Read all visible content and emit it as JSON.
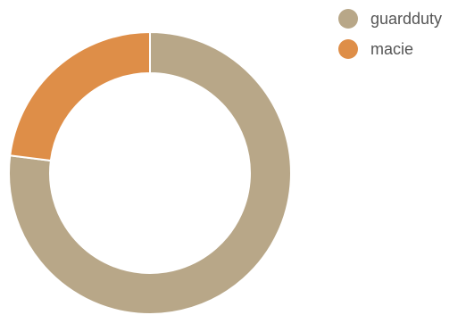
{
  "chart_data": {
    "type": "pie",
    "variant": "donut",
    "categories": [
      "guardduty",
      "macie"
    ],
    "values": [
      77,
      23
    ],
    "colors": [
      "#b8a788",
      "#de8e48"
    ],
    "title": "",
    "legend_position": "top-right"
  },
  "legend": {
    "items": [
      {
        "label": "guardduty",
        "color": "#b8a788"
      },
      {
        "label": "macie",
        "color": "#de8e48"
      }
    ]
  }
}
